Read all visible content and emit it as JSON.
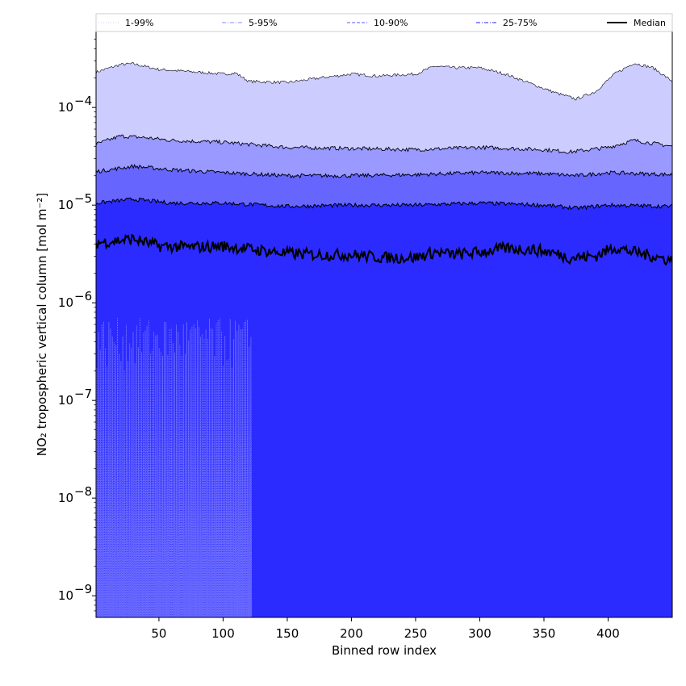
{
  "chart_data": {
    "type": "area",
    "xlabel": "Binned row index",
    "ylabel": "NO₂ tropospheric vertical column [mol m⁻²]",
    "yscale": "log",
    "xlim": [
      1,
      450
    ],
    "ylim": [
      6e-10,
      0.0006
    ],
    "x_ticks": [
      50,
      100,
      150,
      200,
      250,
      300,
      350,
      400
    ],
    "x_tick_labels": [
      "50",
      "100",
      "150",
      "200",
      "250",
      "300",
      "350",
      "400"
    ],
    "y_ticks": [
      1e-09,
      1e-08,
      1e-07,
      1e-06,
      1e-05,
      0.0001
    ],
    "y_tick_labels": [
      {
        "base": "10",
        "exp": "−9"
      },
      {
        "base": "10",
        "exp": "−8"
      },
      {
        "base": "10",
        "exp": "−7"
      },
      {
        "base": "10",
        "exp": "−6"
      },
      {
        "base": "10",
        "exp": "−5"
      },
      {
        "base": "10",
        "exp": "−4"
      }
    ],
    "grid": false,
    "legend_position": "top (above plot, single row)",
    "legend": [
      {
        "label": "1-99%",
        "style": "dotted",
        "color": "#d6d6ff"
      },
      {
        "label": "5-95%",
        "style": "dashdot",
        "color": "#a0a0ff"
      },
      {
        "label": "10-90%",
        "style": "dashed",
        "color": "#7a7aff"
      },
      {
        "label": "25-75%",
        "style": "dashdot",
        "color": "#4d4dff"
      },
      {
        "label": "Median",
        "style": "solid",
        "color": "#000000"
      }
    ],
    "band_fill_colors": {
      "p1_99": "#ccccff",
      "p5_95": "#9999ff",
      "p10_90": "#6666ff",
      "p25_75": "#2b2bff"
    },
    "series": [
      {
        "name": "99%",
        "x": [
          1,
          20,
          30,
          50,
          80,
          100,
          110,
          120,
          150,
          175,
          200,
          220,
          250,
          265,
          280,
          300,
          320,
          340,
          360,
          375,
          390,
          405,
          420,
          435,
          450
        ],
        "values": [
          0.00023,
          0.000275,
          0.00028,
          0.000245,
          0.00023,
          0.00022,
          0.000225,
          0.000185,
          0.00018,
          0.0002,
          0.00022,
          0.00021,
          0.00022,
          0.000265,
          0.000255,
          0.000255,
          0.00022,
          0.000175,
          0.00014,
          0.000122,
          0.000145,
          0.00022,
          0.000285,
          0.000255,
          0.000185
        ]
      },
      {
        "name": "95%",
        "x": [
          1,
          20,
          40,
          60,
          100,
          150,
          200,
          250,
          300,
          350,
          370,
          400,
          420,
          450
        ],
        "values": [
          4.2e-05,
          5.1e-05,
          4.9e-05,
          4.6e-05,
          4.4e-05,
          3.9e-05,
          3.8e-05,
          3.7e-05,
          3.9e-05,
          3.7e-05,
          3.5e-05,
          3.9e-05,
          4.6e-05,
          4e-05
        ]
      },
      {
        "name": "90%",
        "x": [
          1,
          30,
          60,
          100,
          150,
          200,
          250,
          300,
          350,
          375,
          400,
          450
        ],
        "values": [
          2.2e-05,
          2.5e-05,
          2.3e-05,
          2.15e-05,
          2e-05,
          2e-05,
          2.05e-05,
          2.15e-05,
          2.1e-05,
          2e-05,
          2.15e-05,
          2.05e-05
        ]
      },
      {
        "name": "75%",
        "x": [
          1,
          30,
          60,
          100,
          150,
          200,
          250,
          300,
          350,
          375,
          400,
          450
        ],
        "values": [
          1.05e-05,
          1.15e-05,
          1.05e-05,
          1.05e-05,
          9.7e-06,
          1e-05,
          1e-05,
          1.05e-05,
          1e-05,
          9.3e-06,
          1e-05,
          9.7e-06
        ]
      },
      {
        "name": "Median",
        "x": [
          1,
          15,
          30,
          50,
          75,
          100,
          125,
          150,
          175,
          200,
          225,
          250,
          265,
          280,
          300,
          320,
          340,
          355,
          370,
          390,
          405,
          420,
          435,
          450
        ],
        "values": [
          4.1e-06,
          4.3e-06,
          4.5e-06,
          3.8e-06,
          3.7e-06,
          3.8e-06,
          3.5e-06,
          3.2e-06,
          3.1e-06,
          3.1e-06,
          2.9e-06,
          2.9e-06,
          3.3e-06,
          3.1e-06,
          3.3e-06,
          3.6e-06,
          3.5e-06,
          3.3e-06,
          2.9e-06,
          3e-06,
          3.7e-06,
          3.3e-06,
          3e-06,
          2.7e-06
        ]
      }
    ],
    "lower_percentile_spikes": {
      "x_range": [
        1,
        122
      ],
      "peak_range": [
        2e-07,
        7e-07
      ],
      "note": "1/5/10% percentiles drop below the axis minimum for rows > ~122"
    }
  }
}
